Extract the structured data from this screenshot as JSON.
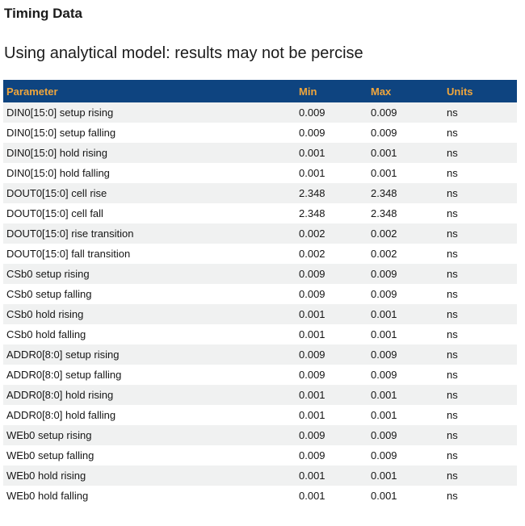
{
  "page": {
    "title": "Timing Data",
    "subtitle": "Using analytical model: results may not be percise"
  },
  "colors": {
    "header_bg": "#0e4480",
    "header_text": "#f0a63c",
    "row_alt_bg": "#f0f1f1",
    "body_text": "#161616",
    "heading_text": "#1b1b1b"
  },
  "table": {
    "columns": [
      "Parameter",
      "Min",
      "Max",
      "Units"
    ],
    "rows": [
      {
        "parameter": "DIN0[15:0] setup rising",
        "min": "0.009",
        "max": "0.009",
        "units": "ns"
      },
      {
        "parameter": "DIN0[15:0] setup falling",
        "min": "0.009",
        "max": "0.009",
        "units": "ns"
      },
      {
        "parameter": "DIN0[15:0] hold rising",
        "min": "0.001",
        "max": "0.001",
        "units": "ns"
      },
      {
        "parameter": "DIN0[15:0] hold falling",
        "min": "0.001",
        "max": "0.001",
        "units": "ns"
      },
      {
        "parameter": "DOUT0[15:0] cell rise",
        "min": "2.348",
        "max": "2.348",
        "units": "ns"
      },
      {
        "parameter": "DOUT0[15:0] cell fall",
        "min": "2.348",
        "max": "2.348",
        "units": "ns"
      },
      {
        "parameter": "DOUT0[15:0] rise transition",
        "min": "0.002",
        "max": "0.002",
        "units": "ns"
      },
      {
        "parameter": "DOUT0[15:0] fall transition",
        "min": "0.002",
        "max": "0.002",
        "units": "ns"
      },
      {
        "parameter": "CSb0 setup rising",
        "min": "0.009",
        "max": "0.009",
        "units": "ns"
      },
      {
        "parameter": "CSb0 setup falling",
        "min": "0.009",
        "max": "0.009",
        "units": "ns"
      },
      {
        "parameter": "CSb0 hold rising",
        "min": "0.001",
        "max": "0.001",
        "units": "ns"
      },
      {
        "parameter": "CSb0 hold falling",
        "min": "0.001",
        "max": "0.001",
        "units": "ns"
      },
      {
        "parameter": "ADDR0[8:0] setup rising",
        "min": "0.009",
        "max": "0.009",
        "units": "ns"
      },
      {
        "parameter": "ADDR0[8:0] setup falling",
        "min": "0.009",
        "max": "0.009",
        "units": "ns"
      },
      {
        "parameter": "ADDR0[8:0] hold rising",
        "min": "0.001",
        "max": "0.001",
        "units": "ns"
      },
      {
        "parameter": "ADDR0[8:0] hold falling",
        "min": "0.001",
        "max": "0.001",
        "units": "ns"
      },
      {
        "parameter": "WEb0 setup rising",
        "min": "0.009",
        "max": "0.009",
        "units": "ns"
      },
      {
        "parameter": "WEb0 setup falling",
        "min": "0.009",
        "max": "0.009",
        "units": "ns"
      },
      {
        "parameter": "WEb0 hold rising",
        "min": "0.001",
        "max": "0.001",
        "units": "ns"
      },
      {
        "parameter": "WEb0 hold falling",
        "min": "0.001",
        "max": "0.001",
        "units": "ns"
      }
    ]
  }
}
